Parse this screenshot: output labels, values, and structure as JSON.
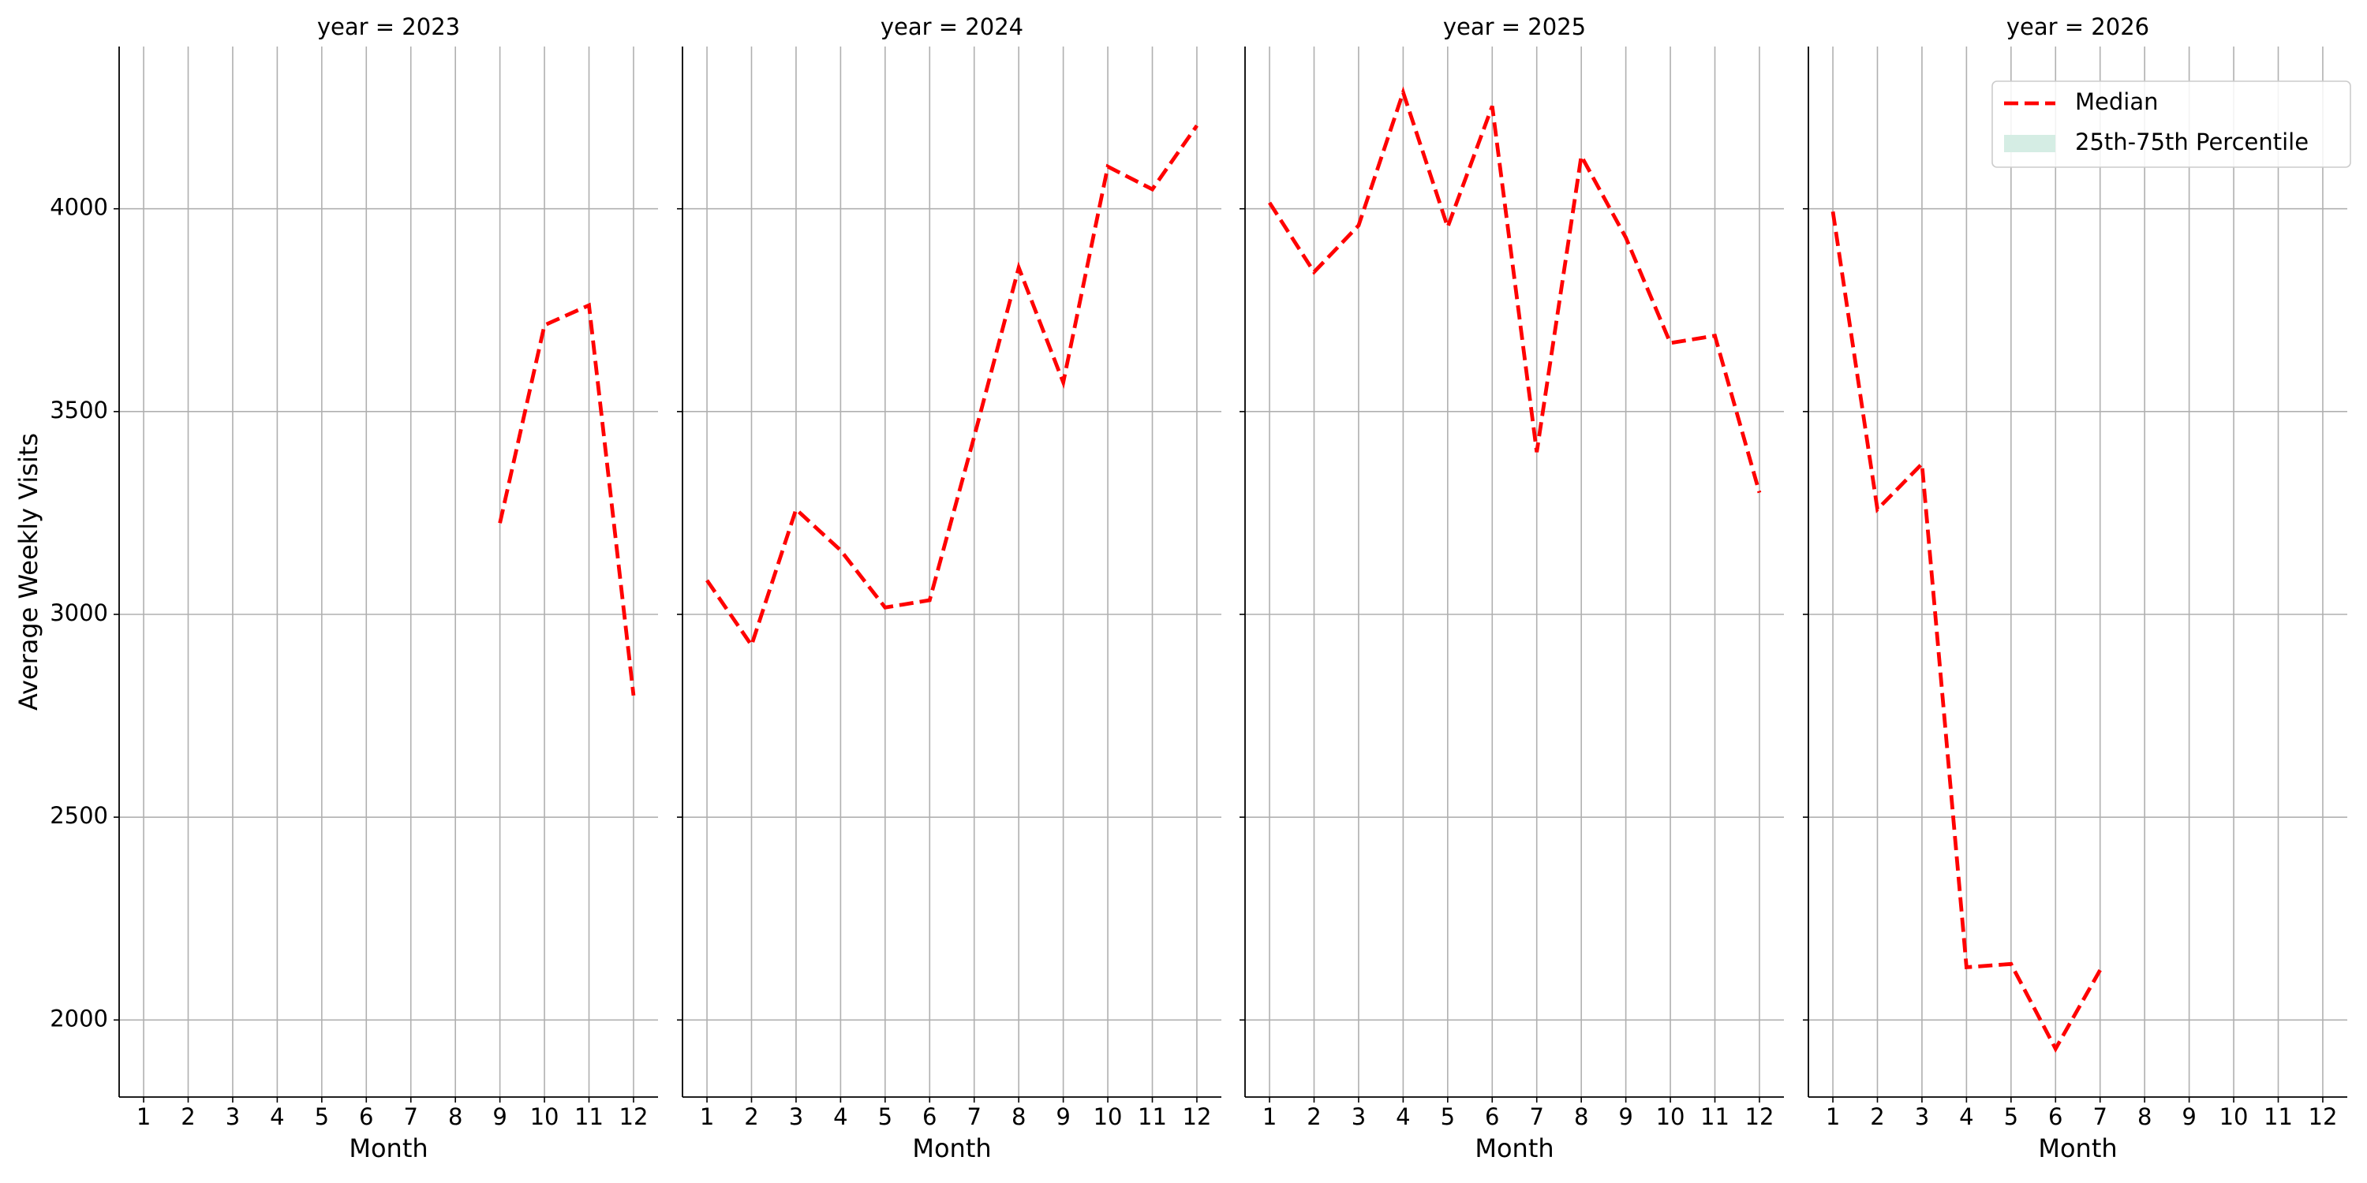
{
  "chart_data": [
    {
      "type": "line",
      "title": "year = 2023",
      "x_label": "Month",
      "y_label": "Average Weekly Visits",
      "x": [
        1,
        2,
        3,
        4,
        5,
        6,
        7,
        8,
        9,
        10,
        11,
        12
      ],
      "xlim": [
        0.45,
        12.55
      ],
      "xticks": [
        1,
        2,
        3,
        4,
        5,
        6,
        7,
        8,
        9,
        10,
        11,
        12
      ],
      "ylim": [
        1810,
        4400
      ],
      "yticks": [
        2000,
        2500,
        3000,
        3500,
        4000
      ],
      "grid": true,
      "series": [
        {
          "color": "#ff0000",
          "values": [
            null,
            null,
            null,
            null,
            null,
            null,
            null,
            null,
            3225,
            3713,
            3762,
            2800
          ]
        }
      ]
    },
    {
      "type": "line",
      "title": "year = 2024",
      "x_label": "Month",
      "x": [
        1,
        2,
        3,
        4,
        5,
        6,
        7,
        8,
        9,
        10,
        11,
        12
      ],
      "xlim": [
        0.45,
        12.55
      ],
      "xticks": [
        1,
        2,
        3,
        4,
        5,
        6,
        7,
        8,
        9,
        10,
        11,
        12
      ],
      "ylim": [
        1810,
        4400
      ],
      "yticks": [
        2000,
        2500,
        3000,
        3500,
        4000
      ],
      "grid": true,
      "series": [
        {
          "color": "#ff0000",
          "values": [
            3084,
            2924,
            3259,
            3158,
            3017,
            3035,
            3438,
            3855,
            3572,
            4104,
            4048,
            4205
          ]
        }
      ]
    },
    {
      "type": "line",
      "title": "year = 2025",
      "x_label": "Month",
      "x": [
        1,
        2,
        3,
        4,
        5,
        6,
        7,
        8,
        9,
        10,
        11,
        12
      ],
      "xlim": [
        0.45,
        12.55
      ],
      "xticks": [
        1,
        2,
        3,
        4,
        5,
        6,
        7,
        8,
        9,
        10,
        11,
        12
      ],
      "ylim": [
        1810,
        4400
      ],
      "yticks": [
        2000,
        2500,
        3000,
        3500,
        4000
      ],
      "grid": true,
      "series": [
        {
          "color": "#ff0000",
          "values": [
            4015,
            3844,
            3959,
            4287,
            3955,
            4253,
            3400,
            4130,
            3929,
            3669,
            3687,
            3300
          ]
        }
      ]
    },
    {
      "type": "line",
      "title": "year = 2026",
      "x_label": "Month",
      "x": [
        1,
        2,
        3,
        4,
        5,
        6,
        7,
        8,
        9,
        10,
        11,
        12
      ],
      "xlim": [
        0.45,
        12.55
      ],
      "xticks": [
        1,
        2,
        3,
        4,
        5,
        6,
        7,
        8,
        9,
        10,
        11,
        12
      ],
      "ylim": [
        1810,
        4400
      ],
      "yticks": [
        2000,
        2500,
        3000,
        3500,
        4000
      ],
      "grid": true,
      "series": [
        {
          "color": "#ff0000",
          "values": [
            3993,
            3259,
            3371,
            2130,
            2138,
            1929,
            2123,
            null,
            null,
            null,
            null,
            null
          ]
        }
      ],
      "legend": {
        "position": "upper right",
        "entries": [
          {
            "name": "Median",
            "color": "#ff0000",
            "style": "dashed"
          },
          {
            "name": "25th-75th Percentile",
            "color": "#d5ede4",
            "style": "band"
          }
        ]
      }
    }
  ]
}
